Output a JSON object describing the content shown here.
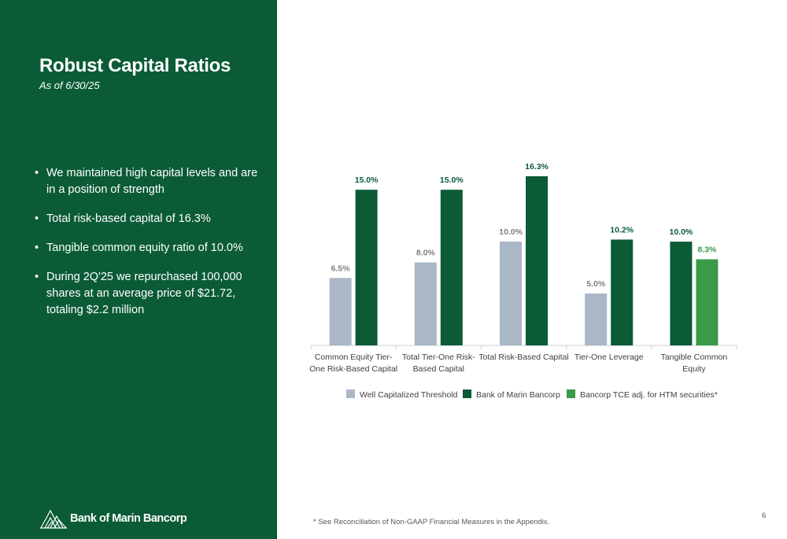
{
  "slide": {
    "title": "Robust Capital Ratios",
    "subtitle": "As of 6/30/25",
    "bullets": [
      "We maintained high capital levels and are in a position of strength",
      "Total risk-based capital of 16.3%",
      "Tangible common equity ratio of 10.0%",
      "During  2Q'25 we repurchased 100,000 shares at an average price of $21.72, totaling $2.2 million"
    ],
    "bullet_glyph": "•",
    "logo_text": "Bank of Marin Bancorp",
    "footnote": "* See Reconciliation of Non-GAAP Financial Measures in the Appendix.",
    "page_number": "6"
  },
  "colors": {
    "brand_green": "#0b5b37",
    "threshold_gray": "#a9b7c6",
    "bank_green": "#0b5b37",
    "tce_green": "#3a9a48"
  },
  "chart_data": {
    "type": "bar",
    "categories": [
      "Common Equity Tier-One Risk-Based Capital",
      "Total Tier-One Risk-Based Capital",
      "Total Risk-Based Capital",
      "Tier-One Leverage",
      "Tangible Common Equity"
    ],
    "category_label_lines": [
      [
        "Common Equity Tier-",
        "One Risk-Based Capital"
      ],
      [
        "Total Tier-One Risk-",
        "Based Capital"
      ],
      [
        "Total Risk-Based Capital"
      ],
      [
        "Tier-One Leverage"
      ],
      [
        "Tangible Common",
        "Equity"
      ]
    ],
    "series": [
      {
        "name": "Well Capitalized Threshold",
        "color": "#a9b7c6",
        "values": [
          6.5,
          8.0,
          10.0,
          5.0,
          null
        ],
        "labels": [
          "6.5%",
          "8.0%",
          "10.0%",
          "5.0%",
          null
        ]
      },
      {
        "name": "Bank of Marin Bancorp",
        "color": "#0b5b37",
        "values": [
          15.0,
          15.0,
          16.3,
          10.2,
          10.0
        ],
        "labels": [
          "15.0%",
          "15.0%",
          "16.3%",
          "10.2%",
          "10.0%"
        ]
      },
      {
        "name": "Bancorp TCE adj. for HTM securities*",
        "color": "#3a9a48",
        "values": [
          null,
          null,
          null,
          null,
          8.3
        ],
        "labels": [
          null,
          null,
          null,
          null,
          "8.3%"
        ]
      }
    ],
    "value_unit": "%",
    "ylim": [
      0,
      17
    ],
    "legend_position": "bottom",
    "grid": false
  }
}
